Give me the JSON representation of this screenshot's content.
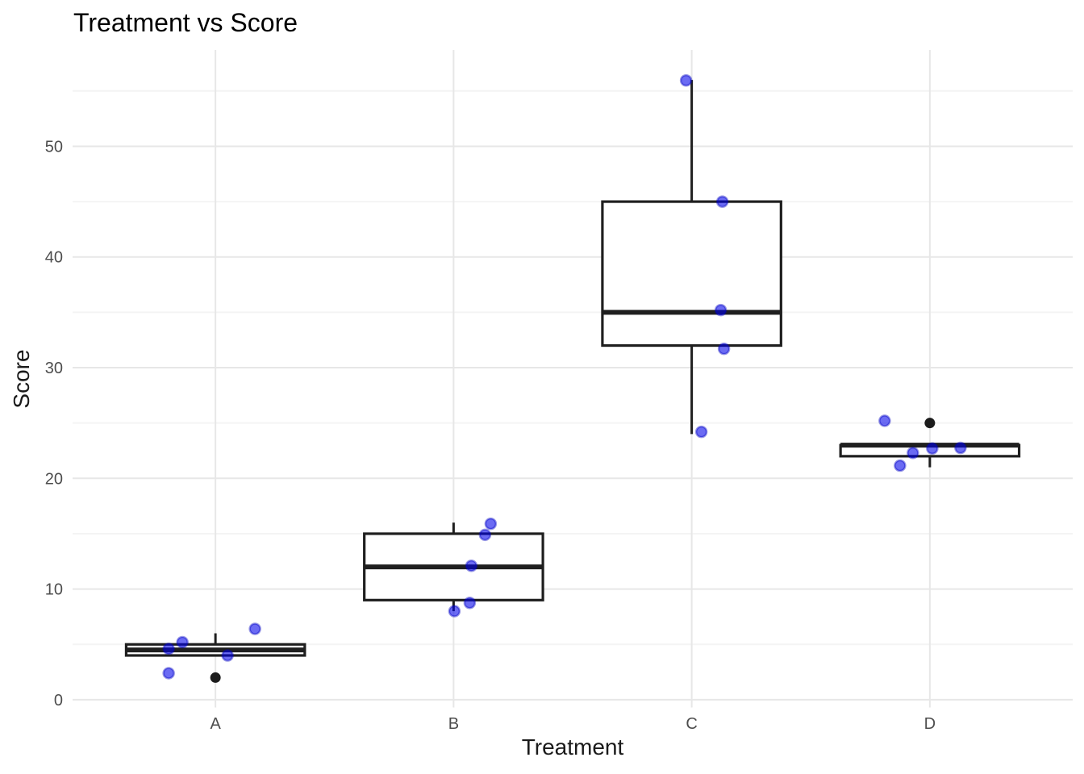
{
  "chart_data": {
    "type": "boxplot",
    "title": "Treatment vs Score",
    "xlabel": "Treatment",
    "ylabel": "Score",
    "categories": [
      "A",
      "B",
      "C",
      "D"
    ],
    "y_major_ticks": [
      0,
      10,
      20,
      30,
      40,
      50
    ],
    "y_minor_gridlines": [
      5,
      15,
      25,
      35,
      45,
      55
    ],
    "ylim": [
      -0.7,
      58.7
    ],
    "grid": true,
    "legend": false,
    "groups": [
      {
        "category": "A",
        "values": [
          2,
          4,
          4.5,
          5,
          6
        ],
        "box": {
          "q1": 4,
          "median": 4.5,
          "q3": 5,
          "whisker_low": null,
          "whisker_high": 6,
          "outliers": [
            2
          ]
        },
        "jitter_points": [
          {
            "dx": -58,
            "y": 4.6
          },
          {
            "dx": -41,
            "y": 5.2
          },
          {
            "dx": 49,
            "y": 6.4
          },
          {
            "dx": 15,
            "y": 4.0
          },
          {
            "dx": -58,
            "y": 2.4
          }
        ]
      },
      {
        "category": "B",
        "values": [
          8,
          9,
          12,
          15,
          16
        ],
        "box": {
          "q1": 9,
          "median": 12,
          "q3": 15,
          "whisker_low": 8,
          "whisker_high": 16,
          "outliers": []
        },
        "jitter_points": [
          {
            "dx": 46,
            "y": 15.9
          },
          {
            "dx": 39,
            "y": 14.9
          },
          {
            "dx": 22,
            "y": 12.1
          },
          {
            "dx": 20,
            "y": 8.75
          },
          {
            "dx": 1,
            "y": 8.0
          }
        ]
      },
      {
        "category": "C",
        "values": [
          24,
          32,
          35,
          45,
          56
        ],
        "box": {
          "q1": 32,
          "median": 35,
          "q3": 45,
          "whisker_low": 24,
          "whisker_high": 56,
          "outliers": []
        },
        "jitter_points": [
          {
            "dx": -7,
            "y": 55.95
          },
          {
            "dx": 38,
            "y": 45.0
          },
          {
            "dx": 36,
            "y": 35.2
          },
          {
            "dx": 40,
            "y": 31.7
          },
          {
            "dx": 12,
            "y": 24.2
          }
        ]
      },
      {
        "category": "D",
        "values": [
          21,
          22,
          23,
          23,
          25
        ],
        "box": {
          "q1": 22,
          "median": 23,
          "q3": 23,
          "whisker_low": 21,
          "whisker_high": null,
          "outliers": [
            25
          ]
        },
        "jitter_points": [
          {
            "dx": -56,
            "y": 25.2
          },
          {
            "dx": -21,
            "y": 22.3
          },
          {
            "dx": 3,
            "y": 22.7
          },
          {
            "dx": 38,
            "y": 22.75
          },
          {
            "dx": -37,
            "y": 21.15
          }
        ]
      }
    ],
    "colors": {
      "point_fill": "rgba(0,0,235,0.58)",
      "point_stroke": "rgba(0,0,190,0.40)",
      "outlier_fill": "#1c1c1c",
      "box_stroke": "#1f1f1f",
      "box_fill": "#ffffff",
      "grid_major": "#e7e7e7",
      "grid_minor": "#f4f4f4",
      "tick_label": "#4d4d4d",
      "axis_title": "#1a1a1a",
      "title": "#000000",
      "background": "#ffffff"
    }
  }
}
